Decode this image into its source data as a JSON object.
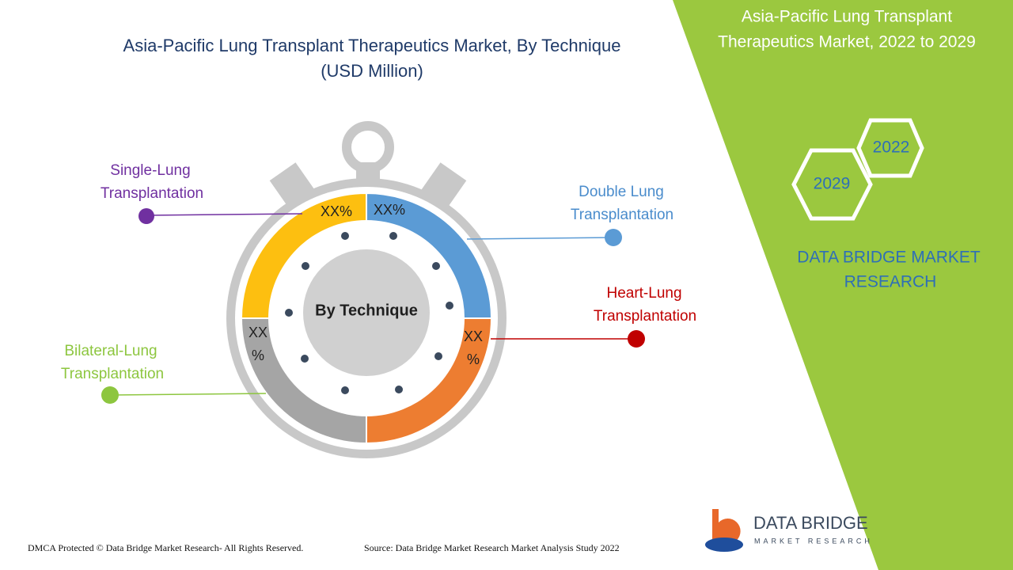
{
  "title": [
    "Asia-Pacific Lung Transplant Therapeutics Market, By Technique",
    "(USD Million)"
  ],
  "center_label": "By Technique",
  "segments": [
    {
      "label": [
        "Single-Lung",
        "Transplantation"
      ],
      "value_label": [
        "XX%"
      ]
    },
    {
      "label": [
        "Double Lung",
        "Transplantation"
      ],
      "value_label": [
        "XX%"
      ]
    },
    {
      "label": [
        "Heart-Lung",
        "Transplantation"
      ],
      "value_label": [
        "XX",
        "%"
      ]
    },
    {
      "label": [
        "Bilateral-Lung",
        "Transplantation"
      ],
      "value_label": [
        "XX",
        "%"
      ]
    }
  ],
  "panel": {
    "title": [
      "Asia-Pacific Lung Transplant",
      "Therapeutics Market, 2022 to 2029"
    ],
    "years": [
      "2022",
      "2029"
    ],
    "brand": [
      "DATA BRIDGE MARKET",
      "RESEARCH"
    ]
  },
  "logo": {
    "name": "DATA BRIDGE",
    "tagline": "MARKET RESEARCH"
  },
  "footer": {
    "copyright": "DMCA Protected © Data Bridge Market Research- All Rights Reserved.",
    "source": "Source: Data Bridge Market Research Market Analysis Study 2022"
  }
}
